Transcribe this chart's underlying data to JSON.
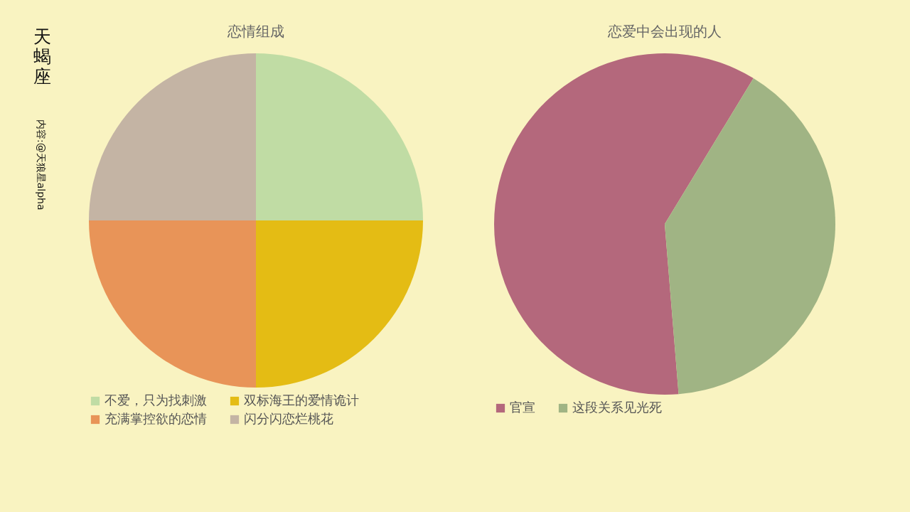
{
  "chart_data": [
    {
      "type": "pie",
      "title": "恋情组成",
      "categories": [
        "不爱，只为找刺激",
        "双标海王的爱情诡计",
        "充满掌控欲的恋情",
        "闪分闪恋烂桃花"
      ],
      "values": [
        25,
        25,
        25,
        25
      ],
      "colors": [
        "#c0dca4",
        "#e4bc14",
        "#e89458",
        "#c4b4a4"
      ],
      "legend": "bottom",
      "annotations": [
        "天蝎座",
        "内容:@天狼星alpha"
      ]
    },
    {
      "type": "pie",
      "title": "恋爱中会出现的人",
      "categories": [
        "官宣",
        "这段关系见光死"
      ],
      "values": [
        60,
        40
      ],
      "colors": [
        "#b4687c",
        "#a0b484"
      ],
      "legend": "bottom"
    }
  ]
}
